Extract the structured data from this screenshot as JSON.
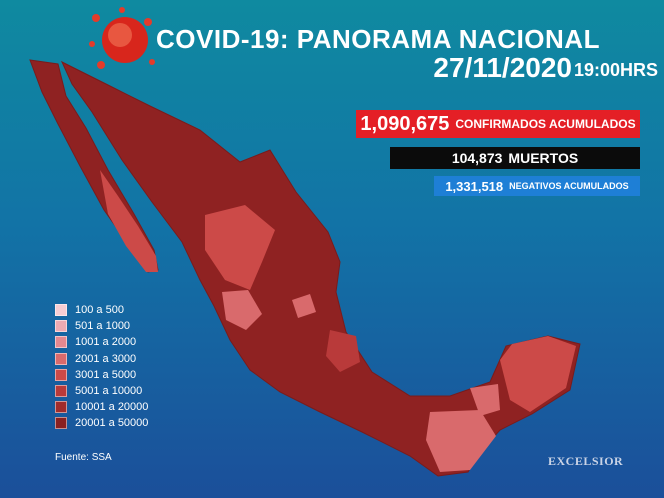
{
  "header": {
    "title": "COVID-19: PANORAMA NACIONAL",
    "date": "27/11/2020",
    "time": "19:00HRS"
  },
  "stats": [
    {
      "number": "1,090,675",
      "label": "CONFIRMADOS ACUMULADOS",
      "color": "#e41f26"
    },
    {
      "number": "104,873",
      "label": "MUERTOS",
      "color": "#0b0b0b"
    },
    {
      "number": "1,331,518",
      "label": "NEGATIVOS ACUMULADOS",
      "color": "#1e7fd6"
    }
  ],
  "legend": [
    {
      "label": "100 a 500",
      "color": "#f6cdd3"
    },
    {
      "label": "501 a 1000",
      "color": "#eeaab2"
    },
    {
      "label": "1001 a 2000",
      "color": "#e48890"
    },
    {
      "label": "2001 a 3000",
      "color": "#d96a6c"
    },
    {
      "label": "3001 a 5000",
      "color": "#cc4a48"
    },
    {
      "label": "5001 a 10000",
      "color": "#b93a3a"
    },
    {
      "label": "10001 a 20000",
      "color": "#a12c2c"
    },
    {
      "label": "20001 a 50000",
      "color": "#8a2020"
    }
  ],
  "source": "Fuente: SSA",
  "brand": "EXCELSIOR"
}
